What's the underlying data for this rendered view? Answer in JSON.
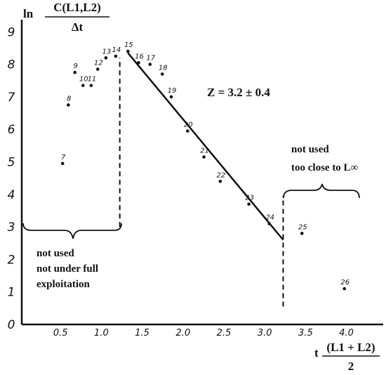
{
  "chart_data": {
    "type": "scatter",
    "ylabel": {
      "prefix": "ln",
      "numerator": "C(L1,L2)",
      "denominator": "Δt"
    },
    "xlabel": {
      "prefix": "t",
      "numerator": "(L1 + L2)",
      "denominator": "2"
    },
    "xlim": [
      0,
      4.5
    ],
    "ylim": [
      0,
      9.3
    ],
    "x_ticks": [
      {
        "value": 0.5,
        "label": "0.5"
      },
      {
        "value": 1.0,
        "label": "1.0"
      },
      {
        "value": 1.5,
        "label": "1.5"
      },
      {
        "value": 2.0,
        "label": "2.0"
      },
      {
        "value": 2.5,
        "label": "2.5"
      },
      {
        "value": 3.0,
        "label": "3.0"
      },
      {
        "value": 3.5,
        "label": "3.5"
      },
      {
        "value": 4.0,
        "label": "4.0"
      }
    ],
    "y_ticks": [
      {
        "value": 0,
        "label": "0"
      },
      {
        "value": 1,
        "label": "1"
      },
      {
        "value": 2,
        "label": "2"
      },
      {
        "value": 3,
        "label": "3"
      },
      {
        "value": 4,
        "label": "4"
      },
      {
        "value": 5,
        "label": "5"
      },
      {
        "value": 6,
        "label": "6"
      },
      {
        "value": 7,
        "label": "7"
      },
      {
        "value": 8,
        "label": "8"
      },
      {
        "value": 9,
        "label": "9"
      }
    ],
    "points": [
      {
        "label": "7",
        "x": 0.5,
        "y": 4.95
      },
      {
        "label": "8",
        "x": 0.57,
        "y": 6.75
      },
      {
        "label": "9",
        "x": 0.65,
        "y": 7.75
      },
      {
        "label": "10",
        "x": 0.75,
        "y": 7.35
      },
      {
        "label": "11",
        "x": 0.85,
        "y": 7.35
      },
      {
        "label": "12",
        "x": 0.93,
        "y": 7.85
      },
      {
        "label": "13",
        "x": 1.03,
        "y": 8.2
      },
      {
        "label": "14",
        "x": 1.15,
        "y": 8.25
      },
      {
        "label": "15",
        "x": 1.3,
        "y": 8.4
      },
      {
        "label": "16",
        "x": 1.43,
        "y": 8.05
      },
      {
        "label": "17",
        "x": 1.57,
        "y": 8.0
      },
      {
        "label": "18",
        "x": 1.72,
        "y": 7.7
      },
      {
        "label": "19",
        "x": 1.83,
        "y": 7.0
      },
      {
        "label": "20",
        "x": 2.03,
        "y": 5.95
      },
      {
        "label": "21",
        "x": 2.23,
        "y": 5.15
      },
      {
        "label": "22",
        "x": 2.43,
        "y": 4.4
      },
      {
        "label": "23",
        "x": 2.78,
        "y": 3.7
      },
      {
        "label": "24",
        "x": 3.03,
        "y": 3.1
      },
      {
        "label": "25",
        "x": 3.43,
        "y": 2.8
      },
      {
        "label": "26",
        "x": 3.95,
        "y": 1.1
      }
    ],
    "fit_line": {
      "x": [
        1.3,
        3.2
      ],
      "y": [
        8.35,
        2.6
      ]
    },
    "divider_lines": [
      {
        "x": 1.2,
        "y": [
          3.0,
          8.2
        ]
      },
      {
        "x": 3.2,
        "y": [
          0.55,
          3.95
        ]
      }
    ],
    "annotations": {
      "slope": "Z = 3.2 ± 0.4",
      "left_line1": "not used",
      "left_line2": "not under full",
      "left_line3": "exploitation",
      "right_line1": "not used",
      "right_line2": "too close to L∞"
    },
    "grid": false,
    "legend": "none"
  }
}
